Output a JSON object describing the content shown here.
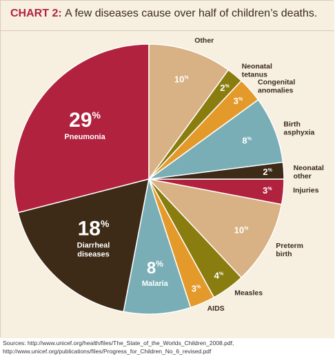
{
  "header": {
    "tag": "CHART 2:",
    "title": "A few diseases cause over half of children’s deaths."
  },
  "chart_data": {
    "type": "pie",
    "title": "A few diseases cause over half of children’s deaths.",
    "slices": [
      {
        "label": "Pneumonia",
        "value": 29,
        "display": "29",
        "color": "#b1223f",
        "label_pos": "inside"
      },
      {
        "label": "Diarrheal diseases",
        "value": 18,
        "display": "18",
        "color": "#3d2a17",
        "label_pos": "inside"
      },
      {
        "label": "Malaria",
        "value": 8,
        "display": "8",
        "color": "#79aeb6",
        "label_pos": "inside"
      },
      {
        "label": "AIDS",
        "value": 3,
        "display": "3",
        "color": "#e49a2b",
        "label_pos": "outside"
      },
      {
        "label": "Measles",
        "value": 4,
        "display": "4",
        "color": "#8a7d0f",
        "label_pos": "outside"
      },
      {
        "label": "Preterm birth",
        "value": 10,
        "display": "10",
        "color": "#d8b184",
        "label_pos": "outside"
      },
      {
        "label": "Injuries",
        "value": 3,
        "display": "3",
        "color": "#b1223f",
        "label_pos": "outside"
      },
      {
        "label": "Neonatal other",
        "value": 2,
        "display": "2",
        "color": "#3d2a17",
        "label_pos": "outside"
      },
      {
        "label": "Birth asphyxia",
        "value": 8,
        "display": "8",
        "color": "#79aeb6",
        "label_pos": "outside"
      },
      {
        "label": "Congenital anomalies",
        "value": 3,
        "display": "3",
        "color": "#e49a2b",
        "label_pos": "outside"
      },
      {
        "label": "Neonatal tetanus",
        "value": 2,
        "display": "2",
        "color": "#8a7d0f",
        "label_pos": "outside"
      },
      {
        "label": "Other",
        "value": 10,
        "display": "10",
        "color": "#d8b184",
        "label_pos": "outside"
      }
    ],
    "unit": "%"
  },
  "sources": {
    "line1": "Sources: http://www.unicef.org/health/files/The_State_of_the_Worlds_Children_2008.pdf,",
    "line2": "http://www.unicef.org/publications/files/Progress_for_Children_No_6_revised.pdf"
  }
}
